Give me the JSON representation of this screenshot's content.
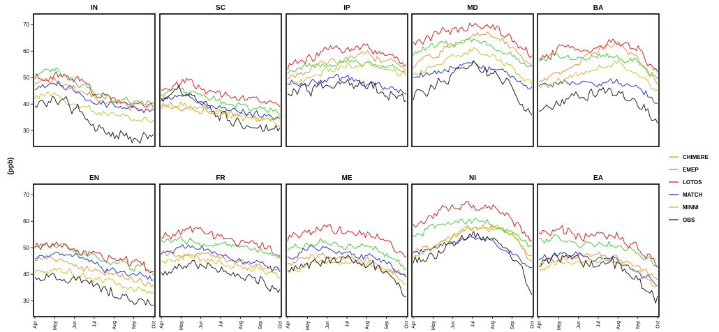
{
  "chart_data": {
    "type": "line",
    "ylabel": "(ppb)",
    "ylim": [
      24,
      74
    ],
    "yticks": [
      30,
      40,
      50,
      60,
      70
    ],
    "x_tick_labels": [
      "Apr",
      "May",
      "Jun",
      "Jul",
      "Aug",
      "Sep",
      "Oct"
    ],
    "legend": {
      "position": "right"
    },
    "series_meta": [
      {
        "name": "CHIMERE",
        "color": "#e8953a"
      },
      {
        "name": "EMEP",
        "color": "#3ed43e"
      },
      {
        "name": "LOTOS",
        "color": "#e02020"
      },
      {
        "name": "MATCH",
        "color": "#2436e0"
      },
      {
        "name": "MINNI",
        "color": "#c9c22e"
      },
      {
        "name": "OBS",
        "color": "#222222"
      }
    ],
    "panels": [
      {
        "title": "IN",
        "series": [
          {
            "name": "CHIMERE",
            "values": [
              48,
              49,
              45,
              43,
              40,
              39,
              38
            ]
          },
          {
            "name": "EMEP",
            "values": [
              51,
              53,
              48,
              45,
              42,
              41,
              40
            ]
          },
          {
            "name": "LOTOS",
            "values": [
              50,
              51,
              49,
              45,
              42,
              41,
              40
            ]
          },
          {
            "name": "MATCH",
            "values": [
              46,
              48,
              45,
              41,
              40,
              39,
              37
            ]
          },
          {
            "name": "MINNI",
            "values": [
              43,
              44,
              40,
              38,
              36,
              35,
              34
            ]
          },
          {
            "name": "OBS",
            "values": [
              39,
              43,
              38,
              32,
              29,
              28,
              27
            ]
          }
        ]
      },
      {
        "title": "SC",
        "series": [
          {
            "name": "CHIMERE",
            "values": [
              39,
              39,
              38,
              37,
              36,
              35,
              34
            ]
          },
          {
            "name": "EMEP",
            "values": [
              44,
              45,
              42,
              41,
              39,
              38,
              37
            ]
          },
          {
            "name": "LOTOS",
            "values": [
              46,
              48,
              46,
              44,
              42,
              41,
              40
            ]
          },
          {
            "name": "MATCH",
            "values": [
              42,
              44,
              41,
              39,
              37,
              36,
              35
            ]
          },
          {
            "name": "MINNI",
            "values": [
              38,
              40,
              38,
              36,
              35,
              34,
              33
            ]
          },
          {
            "name": "OBS",
            "values": [
              42,
              45,
              41,
              37,
              33,
              31,
              29
            ]
          }
        ]
      },
      {
        "title": "IP",
        "series": [
          {
            "name": "CHIMERE",
            "values": [
              50,
              53,
              56,
              58,
              59,
              56,
              52
            ]
          },
          {
            "name": "EMEP",
            "values": [
              52,
              54,
              55,
              56,
              55,
              54,
              51
            ]
          },
          {
            "name": "LOTOS",
            "values": [
              54,
              57,
              60,
              61,
              61,
              59,
              55
            ]
          },
          {
            "name": "MATCH",
            "values": [
              47,
              48,
              49,
              49,
              48,
              46,
              44
            ]
          },
          {
            "name": "MINNI",
            "values": [
              48,
              50,
              53,
              54,
              55,
              53,
              50
            ]
          },
          {
            "name": "OBS",
            "values": [
              44,
              46,
              47,
              47,
              46,
              44,
              41
            ]
          }
        ]
      },
      {
        "title": "MD",
        "series": [
          {
            "name": "CHIMERE",
            "values": [
              54,
              58,
              63,
              66,
              66,
              61,
              55
            ]
          },
          {
            "name": "EMEP",
            "values": [
              59,
              62,
              62,
              64,
              62,
              58,
              54
            ]
          },
          {
            "name": "LOTOS",
            "values": [
              63,
              66,
              68,
              69,
              68,
              64,
              58
            ]
          },
          {
            "name": "MATCH",
            "values": [
              50,
              52,
              54,
              55,
              53,
              50,
              46
            ]
          },
          {
            "name": "MINNI",
            "values": [
              51,
              54,
              58,
              60,
              58,
              53,
              48
            ]
          },
          {
            "name": "OBS",
            "values": [
              42,
              47,
              51,
              55,
              52,
              45,
              38
            ]
          }
        ]
      },
      {
        "title": "BA",
        "series": [
          {
            "name": "CHIMERE",
            "values": [
              49,
              52,
              56,
              60,
              64,
              57,
              48
            ]
          },
          {
            "name": "EMEP",
            "values": [
              56,
              58,
              57,
              59,
              58,
              56,
              50
            ]
          },
          {
            "name": "LOTOS",
            "values": [
              57,
              60,
              61,
              62,
              63,
              61,
              52
            ]
          },
          {
            "name": "MATCH",
            "values": [
              47,
              48,
              48,
              48,
              48,
              46,
              41
            ]
          },
          {
            "name": "MINNI",
            "values": [
              47,
              49,
              51,
              54,
              55,
              51,
              44
            ]
          },
          {
            "name": "OBS",
            "values": [
              38,
              41,
              43,
              45,
              45,
              40,
              33
            ]
          }
        ]
      },
      {
        "title": "EN",
        "series": [
          {
            "name": "CHIMERE",
            "values": [
              45,
              46,
              43,
              41,
              40,
              38,
              36
            ]
          },
          {
            "name": "EMEP",
            "values": [
              50,
              51,
              48,
              46,
              45,
              43,
              41
            ]
          },
          {
            "name": "LOTOS",
            "values": [
              50,
              52,
              49,
              47,
              46,
              44,
              41
            ]
          },
          {
            "name": "MATCH",
            "values": [
              46,
              48,
              48,
              43,
              42,
              40,
              38
            ]
          },
          {
            "name": "MINNI",
            "values": [
              41,
              42,
              40,
              38,
              37,
              35,
              33
            ]
          },
          {
            "name": "OBS",
            "values": [
              38,
              40,
              38,
              35,
              33,
              31,
              27
            ]
          }
        ]
      },
      {
        "title": "FR",
        "series": [
          {
            "name": "CHIMERE",
            "values": [
              47,
              48,
              47,
              45,
              44,
              43,
              41
            ]
          },
          {
            "name": "EMEP",
            "values": [
              53,
              54,
              52,
              51,
              50,
              49,
              47
            ]
          },
          {
            "name": "LOTOS",
            "values": [
              54,
              56,
              56,
              54,
              53,
              51,
              48
            ]
          },
          {
            "name": "MATCH",
            "values": [
              48,
              51,
              50,
              47,
              45,
              44,
              41
            ]
          },
          {
            "name": "MINNI",
            "values": [
              44,
              46,
              46,
              44,
              43,
              42,
              39
            ]
          },
          {
            "name": "OBS",
            "values": [
              40,
              44,
              43,
              41,
              40,
              38,
              33
            ]
          }
        ]
      },
      {
        "title": "ME",
        "series": [
          {
            "name": "CHIMERE",
            "values": [
              44,
              47,
              47,
              46,
              45,
              43,
              39
            ]
          },
          {
            "name": "EMEP",
            "values": [
              49,
              52,
              52,
              51,
              50,
              48,
              43
            ]
          },
          {
            "name": "LOTOS",
            "values": [
              53,
              56,
              57,
              56,
              55,
              52,
              46
            ]
          },
          {
            "name": "MATCH",
            "values": [
              46,
              50,
              50,
              48,
              47,
              45,
              39
            ]
          },
          {
            "name": "MINNI",
            "values": [
              41,
              44,
              45,
              44,
              44,
              42,
              37
            ]
          },
          {
            "name": "OBS",
            "values": [
              41,
              44,
              45,
              45,
              44,
              40,
              32
            ]
          }
        ]
      },
      {
        "title": "NI",
        "series": [
          {
            "name": "CHIMERE",
            "values": [
              48,
              51,
              55,
              57,
              58,
              54,
              45
            ]
          },
          {
            "name": "EMEP",
            "values": [
              55,
              58,
              60,
              60,
              59,
              56,
              50
            ]
          },
          {
            "name": "LOTOS",
            "values": [
              58,
              62,
              65,
              66,
              65,
              61,
              52
            ]
          },
          {
            "name": "MATCH",
            "values": [
              48,
              50,
              52,
              54,
              52,
              48,
              42
            ]
          },
          {
            "name": "MINNI",
            "values": [
              46,
              50,
              54,
              58,
              58,
              54,
              46
            ]
          },
          {
            "name": "OBS",
            "values": [
              44,
              47,
              51,
              55,
              53,
              46,
              35
            ]
          }
        ]
      },
      {
        "title": "EA",
        "series": [
          {
            "name": "CHIMERE",
            "values": [
              44,
              46,
              47,
              47,
              46,
              43,
              39
            ]
          },
          {
            "name": "EMEP",
            "values": [
              53,
              54,
              52,
              51,
              52,
              48,
              43
            ]
          },
          {
            "name": "LOTOS",
            "values": [
              55,
              57,
              55,
              54,
              55,
              50,
              44
            ]
          },
          {
            "name": "MATCH",
            "values": [
              45,
              48,
              47,
              46,
              45,
              41,
              36
            ]
          },
          {
            "name": "MINNI",
            "values": [
              42,
              45,
              45,
              45,
              44,
              41,
              35
            ]
          },
          {
            "name": "OBS",
            "values": [
              43,
              46,
              45,
              45,
              43,
              37,
              31
            ]
          }
        ]
      }
    ]
  }
}
